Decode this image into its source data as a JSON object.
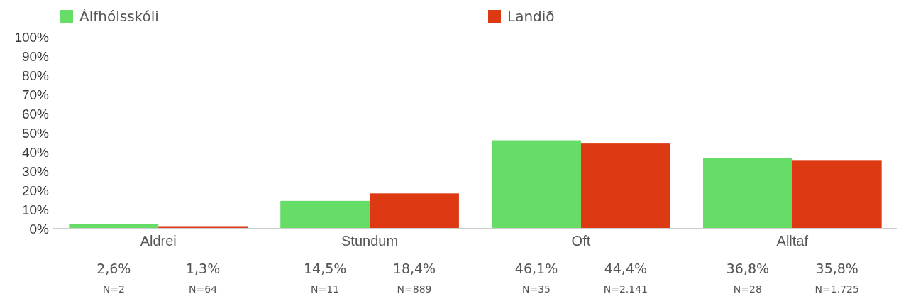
{
  "chart_data": {
    "type": "bar",
    "categories": [
      "Aldrei",
      "Stundum",
      "Oft",
      "Alltaf"
    ],
    "series": [
      {
        "name": "Álfhólsskóli",
        "color": "#66dd66",
        "values": [
          2.6,
          14.5,
          46.1,
          36.8
        ],
        "value_labels": [
          "2,6%",
          "14,5%",
          "46,1%",
          "36,8%"
        ]
      },
      {
        "name": "Landið",
        "color": "#dd3a14",
        "values": [
          1.3,
          18.4,
          44.4,
          35.8
        ],
        "value_labels": [
          "1,3%",
          "18,4%",
          "44,4%",
          "35,8%"
        ]
      }
    ],
    "ylim": [
      0,
      100
    ],
    "yticks": [
      {
        "value": 0,
        "label": "0%"
      },
      {
        "value": 10,
        "label": "10%"
      },
      {
        "value": 20,
        "label": "20%"
      },
      {
        "value": 30,
        "label": "30%"
      },
      {
        "value": 40,
        "label": "40%"
      },
      {
        "value": 50,
        "label": "50%"
      },
      {
        "value": 60,
        "label": "60%"
      },
      {
        "value": 70,
        "label": "70%"
      },
      {
        "value": 80,
        "label": "80%"
      },
      {
        "value": 90,
        "label": "90%"
      },
      {
        "value": 100,
        "label": "100%"
      }
    ],
    "annotations": [
      "N=2",
      "N=64",
      "N=11",
      "N=889",
      "N=35",
      "N=2.141",
      "N=28",
      "N=1.725"
    ],
    "legend": "top",
    "grid": false
  }
}
